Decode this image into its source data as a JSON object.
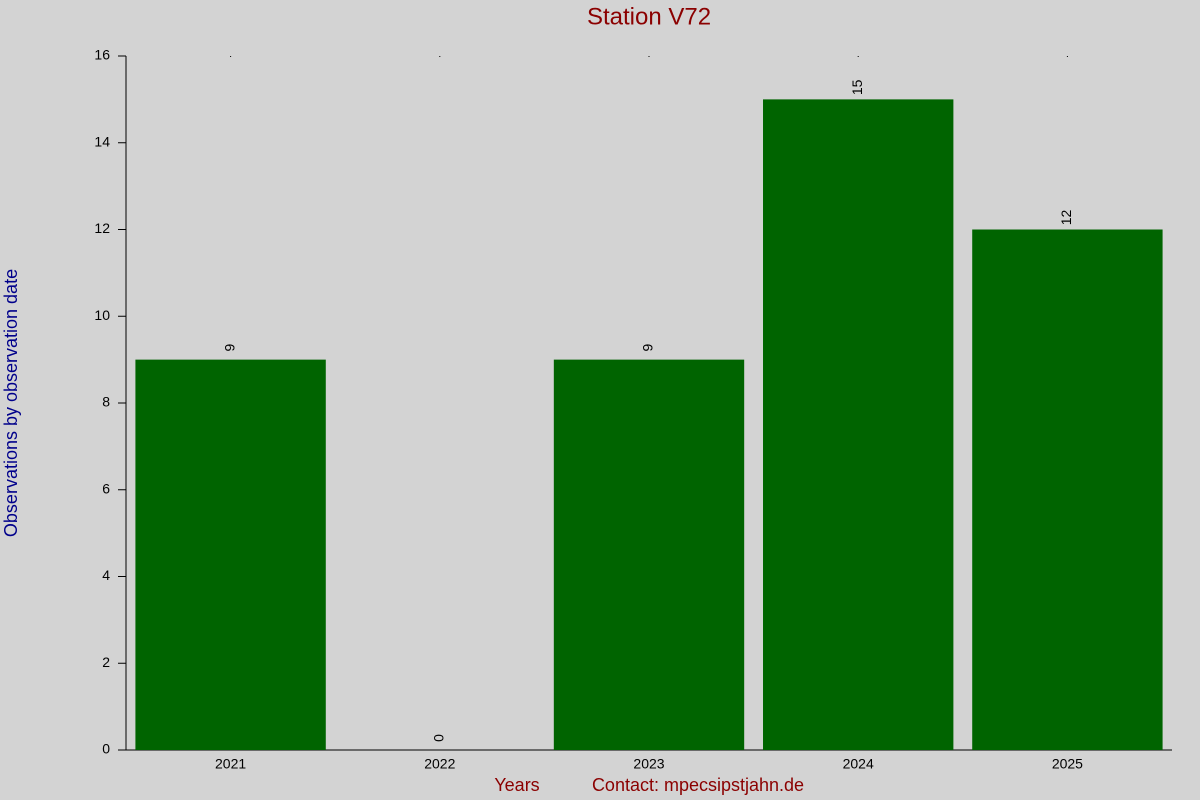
{
  "chart_data": {
    "type": "bar",
    "title": "Station V72",
    "x_label": "Years",
    "contact": "Contact: mpecsipstjahn.de",
    "y_label": "Observations by observation date",
    "categories": [
      "2021",
      "2022",
      "2023",
      "2024",
      "2025"
    ],
    "values": [
      9,
      0,
      9,
      15,
      12
    ],
    "color": "#006400",
    "ylim": [
      0,
      16
    ],
    "yticks": [
      0,
      2,
      4,
      6,
      8,
      10,
      12,
      14,
      16
    ],
    "grid": false
  }
}
